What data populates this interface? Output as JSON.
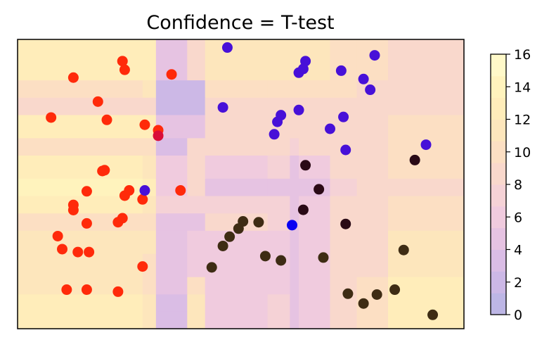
{
  "chart_data": {
    "type": "scatter",
    "title": "Confidence = T-test",
    "xlabel": "",
    "ylabel": "",
    "xlim": [
      0,
      100
    ],
    "ylim": [
      0,
      100
    ],
    "axis_ticks_visible": false,
    "background": {
      "type": "filled-contour",
      "description_colors": [
        "#beb8e4",
        "#d4bce6",
        "#e6c5e6",
        "#f2cfdf",
        "#f8d9d3",
        "#fde4c5",
        "#fff0bf"
      ],
      "column_edges": [
        0,
        28,
        31,
        38,
        42,
        56,
        61,
        63,
        70,
        76,
        83,
        100
      ],
      "row_edges": [
        0,
        6,
        12,
        18,
        26,
        34,
        40,
        46,
        52,
        60,
        66,
        74,
        80,
        86,
        92,
        100
      ],
      "levels": [
        [
          12,
          11,
          3,
          11,
          6,
          7,
          4,
          6,
          8,
          10,
          12
        ],
        [
          12,
          11,
          3,
          11,
          6,
          7,
          4,
          6,
          8,
          10,
          12
        ],
        [
          11,
          10,
          4,
          10,
          6,
          6,
          4,
          6,
          8,
          10,
          12
        ],
        [
          11,
          10,
          4,
          6,
          6,
          6,
          4,
          6,
          8,
          9,
          11
        ],
        [
          11,
          11,
          4,
          6,
          6,
          6,
          4,
          6,
          8,
          9,
          11
        ],
        [
          10,
          10,
          4,
          5,
          8,
          7,
          4,
          6,
          8,
          9,
          10
        ],
        [
          13,
          11,
          7,
          7,
          7,
          7,
          4,
          6,
          8,
          9,
          10
        ],
        [
          14,
          12,
          6,
          8,
          5,
          5,
          4,
          5,
          7,
          8,
          9
        ],
        [
          12,
          11,
          6,
          8,
          6,
          7,
          4,
          6,
          8,
          9,
          10
        ],
        [
          10,
          10,
          3,
          8,
          8,
          8,
          7,
          8,
          9,
          9,
          10
        ],
        [
          12,
          12,
          5,
          5,
          8,
          8,
          8,
          8,
          9,
          9,
          10
        ],
        [
          9,
          9,
          2,
          2,
          9,
          9,
          9,
          9,
          9,
          9,
          9
        ],
        [
          10,
          11,
          2,
          2,
          10,
          10,
          10,
          10,
          10,
          9,
          9
        ],
        [
          12,
          12,
          4,
          8,
          11,
          11,
          11,
          11,
          10,
          10,
          9
        ],
        [
          12,
          12,
          4,
          8,
          11,
          11,
          11,
          11,
          10,
          10,
          9
        ]
      ]
    },
    "colorbar": {
      "vmin": 0,
      "vmax": 16,
      "ticks": [
        "0",
        "2",
        "4",
        "6",
        "8",
        "10",
        "12",
        "14",
        "16"
      ],
      "band_colors": [
        "#bdb6e5",
        "#ccb8e6",
        "#dabde5",
        "#e6c3e2",
        "#f0cbde",
        "#f5d2d6",
        "#f9d8cc",
        "#fcdfc3",
        "#fde6bc",
        "#ffedba",
        "#fff3bd",
        "#fff9c9"
      ]
    },
    "series": [
      {
        "color": "#ff2a0a",
        "points": [
          [
            23.5,
            92.5
          ],
          [
            24,
            89.5
          ],
          [
            34.5,
            87.9
          ],
          [
            12.5,
            86.8
          ],
          [
            18,
            78.5
          ],
          [
            7.5,
            73
          ],
          [
            20,
            72.2
          ],
          [
            28.5,
            70.5
          ],
          [
            31.5,
            68.6
          ],
          [
            19,
            54.5
          ],
          [
            19.5,
            54.8
          ],
          [
            15.5,
            47.5
          ],
          [
            25,
            47.8
          ],
          [
            24,
            46
          ],
          [
            36.5,
            47.8
          ],
          [
            28,
            44.7
          ],
          [
            12.5,
            42.8
          ],
          [
            12.5,
            41
          ],
          [
            23.5,
            38.2
          ],
          [
            22.5,
            36.8
          ],
          [
            15.5,
            36.4
          ],
          [
            9,
            32
          ],
          [
            10,
            27.5
          ],
          [
            13.5,
            26.5
          ],
          [
            16,
            26.5
          ],
          [
            28,
            21.5
          ],
          [
            11,
            13.5
          ],
          [
            15.5,
            13.5
          ],
          [
            22.5,
            12.8
          ]
        ]
      },
      {
        "color": "#d90d38",
        "points": [
          [
            31.5,
            66.7
          ]
        ]
      },
      {
        "color": "#4710d8",
        "points": [
          [
            47,
            97.2
          ],
          [
            80,
            94.5
          ],
          [
            64.5,
            92.5
          ],
          [
            64,
            89.8
          ],
          [
            72.5,
            89.2
          ],
          [
            63,
            88.5
          ],
          [
            77.5,
            86.3
          ],
          [
            79,
            82.6
          ],
          [
            46,
            76.5
          ],
          [
            63,
            75.6
          ],
          [
            59,
            73.8
          ],
          [
            73,
            73.2
          ],
          [
            58.2,
            71.5
          ],
          [
            70,
            69.1
          ],
          [
            57.5,
            67.2
          ],
          [
            91.5,
            63.6
          ],
          [
            73.5,
            61.8
          ],
          [
            28.5,
            47.8
          ]
        ]
      },
      {
        "color": "#0800f2",
        "points": [
          [
            61.5,
            35.8
          ]
        ]
      },
      {
        "color": "#2a0a16",
        "points": [
          [
            64.5,
            56.5
          ],
          [
            67.5,
            48.2
          ],
          [
            64,
            41.1
          ],
          [
            89,
            58.3
          ],
          [
            73.5,
            36.2
          ]
        ]
      },
      {
        "color": "#3e2c14",
        "points": [
          [
            54,
            36.8
          ],
          [
            50.5,
            37.1
          ],
          [
            49.5,
            34.6
          ],
          [
            47.5,
            31.8
          ],
          [
            46,
            28.6
          ],
          [
            55.5,
            25.1
          ],
          [
            86.5,
            27.2
          ],
          [
            68.5,
            24.6
          ],
          [
            59,
            23.6
          ],
          [
            43.5,
            21.2
          ],
          [
            84.5,
            13.5
          ],
          [
            74,
            12.1
          ],
          [
            80.5,
            11.8
          ],
          [
            77.5,
            8.7
          ],
          [
            93,
            4.8
          ]
        ]
      }
    ]
  }
}
